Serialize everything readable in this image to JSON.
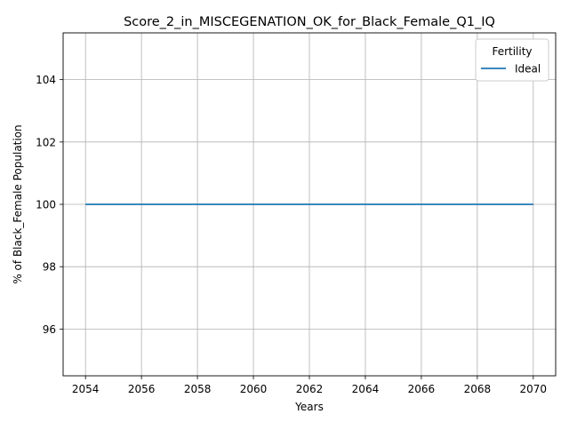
{
  "chart_data": {
    "type": "line",
    "title": "Score_2_in_MISCEGENATION_OK_for_Black_Female_Q1_IQ",
    "xlabel": "Years",
    "ylabel": "% of Black_Female Population",
    "xlim": [
      2053.2,
      2070.8
    ],
    "ylim": [
      94.5,
      105.5
    ],
    "xticks": [
      2054,
      2056,
      2058,
      2060,
      2062,
      2064,
      2066,
      2068,
      2070
    ],
    "yticks": [
      96,
      98,
      100,
      102,
      104
    ],
    "grid": true,
    "legend": {
      "title": "Fertility",
      "placement": "top-right"
    },
    "series": [
      {
        "name": "Ideal",
        "color": "#1f77b4",
        "x": [
          2054,
          2055,
          2056,
          2057,
          2058,
          2059,
          2060,
          2061,
          2062,
          2063,
          2064,
          2065,
          2066,
          2067,
          2068,
          2069,
          2070
        ],
        "y": [
          100,
          100,
          100,
          100,
          100,
          100,
          100,
          100,
          100,
          100,
          100,
          100,
          100,
          100,
          100,
          100,
          100
        ]
      }
    ]
  }
}
